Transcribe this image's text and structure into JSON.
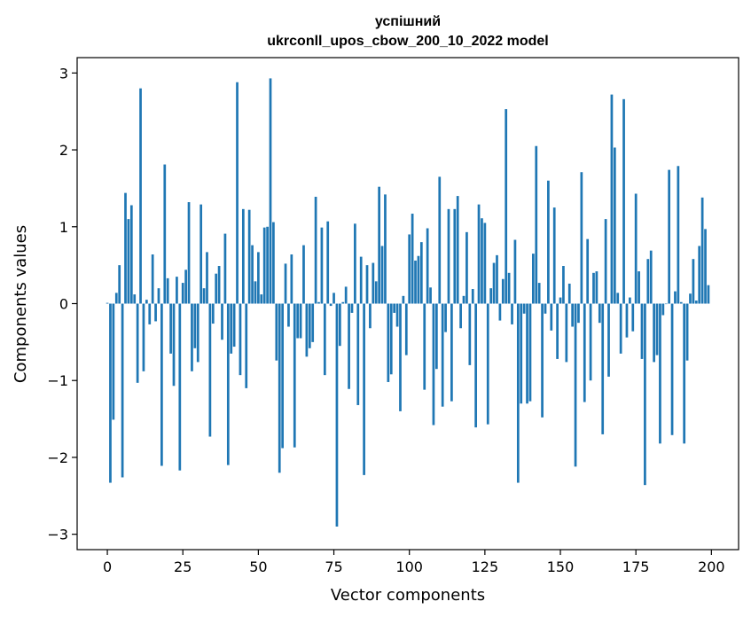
{
  "chart_data": {
    "type": "bar",
    "title": "успішний",
    "subtitle": "ukrconll_upos_cbow_200_10_2022 model",
    "xlabel": "Vector components",
    "ylabel": "Components values",
    "xlim": [
      -10,
      209
    ],
    "ylim": [
      -3.2,
      3.2
    ],
    "xticks": [
      0,
      25,
      50,
      75,
      100,
      125,
      150,
      175,
      200
    ],
    "xtick_labels": [
      "0",
      "25",
      "50",
      "75",
      "100",
      "125",
      "150",
      "175",
      "200"
    ],
    "yticks": [
      -3,
      -2,
      -1,
      0,
      1,
      2,
      3
    ],
    "ytick_labels": [
      "−3",
      "−2",
      "−1",
      "0",
      "1",
      "2",
      "3"
    ],
    "bar_color": "#1f77b4",
    "grid": false,
    "x": [
      0,
      1,
      2,
      3,
      4,
      5,
      6,
      7,
      8,
      9,
      10,
      11,
      12,
      13,
      14,
      15,
      16,
      17,
      18,
      19,
      20,
      21,
      22,
      23,
      24,
      25,
      26,
      27,
      28,
      29,
      30,
      31,
      32,
      33,
      34,
      35,
      36,
      37,
      38,
      39,
      40,
      41,
      42,
      43,
      44,
      45,
      46,
      47,
      48,
      49,
      50,
      51,
      52,
      53,
      54,
      55,
      56,
      57,
      58,
      59,
      60,
      61,
      62,
      63,
      64,
      65,
      66,
      67,
      68,
      69,
      70,
      71,
      72,
      73,
      74,
      75,
      76,
      77,
      78,
      79,
      80,
      81,
      82,
      83,
      84,
      85,
      86,
      87,
      88,
      89,
      90,
      91,
      92,
      93,
      94,
      95,
      96,
      97,
      98,
      99,
      100,
      101,
      102,
      103,
      104,
      105,
      106,
      107,
      108,
      109,
      110,
      111,
      112,
      113,
      114,
      115,
      116,
      117,
      118,
      119,
      120,
      121,
      122,
      123,
      124,
      125,
      126,
      127,
      128,
      129,
      130,
      131,
      132,
      133,
      134,
      135,
      136,
      137,
      138,
      139,
      140,
      141,
      142,
      143,
      144,
      145,
      146,
      147,
      148,
      149,
      150,
      151,
      152,
      153,
      154,
      155,
      156,
      157,
      158,
      159,
      160,
      161,
      162,
      163,
      164,
      165,
      166,
      167,
      168,
      169,
      170,
      171,
      172,
      173,
      174,
      175,
      176,
      177,
      178,
      179,
      180,
      181,
      182,
      183,
      184,
      185,
      186,
      187,
      188,
      189,
      190,
      191,
      192,
      193,
      194,
      195,
      196,
      197,
      198,
      199
    ],
    "values": [
      0.01,
      -2.33,
      -1.51,
      0.14,
      0.5,
      -2.26,
      1.44,
      1.1,
      1.28,
      0.12,
      -1.03,
      2.8,
      -0.88,
      0.05,
      -0.27,
      0.64,
      -0.23,
      0.2,
      -2.11,
      1.81,
      0.33,
      -0.65,
      -1.07,
      0.35,
      -2.17,
      0.27,
      0.44,
      1.32,
      -0.88,
      -0.58,
      -0.76,
      1.29,
      0.2,
      0.67,
      -1.73,
      -0.26,
      0.39,
      0.49,
      -0.47,
      0.91,
      -2.1,
      -0.65,
      -0.56,
      2.88,
      -0.93,
      1.23,
      -1.1,
      1.22,
      0.76,
      0.29,
      0.67,
      0.12,
      0.99,
      1.0,
      2.93,
      1.06,
      -0.74,
      -2.2,
      -1.88,
      0.52,
      -0.3,
      0.64,
      -1.87,
      -0.45,
      -0.45,
      0.76,
      -0.69,
      -0.58,
      -0.5,
      1.39,
      0.02,
      0.99,
      -0.93,
      1.07,
      -0.03,
      0.14,
      -2.9,
      -0.55,
      0.02,
      0.22,
      -1.11,
      -0.12,
      1.04,
      -1.32,
      0.61,
      -2.23,
      0.5,
      -0.32,
      0.53,
      0.29,
      1.52,
      0.75,
      1.42,
      -1.02,
      -0.92,
      -0.12,
      -0.3,
      -1.4,
      0.1,
      -0.67,
      0.9,
      1.17,
      0.56,
      0.62,
      0.8,
      -1.12,
      0.98,
      0.21,
      -1.58,
      -0.85,
      1.65,
      -1.34,
      -0.37,
      1.23,
      -1.27,
      1.23,
      1.4,
      -0.32,
      0.1,
      0.93,
      -0.8,
      0.19,
      -1.61,
      1.29,
      1.11,
      1.05,
      -1.57,
      0.2,
      0.53,
      0.63,
      -0.22,
      0.32,
      2.53,
      0.4,
      -0.27,
      0.83,
      -2.33,
      -1.3,
      -0.13,
      -1.3,
      -1.27,
      0.65,
      2.05,
      0.27,
      -1.48,
      -0.13,
      1.6,
      -0.35,
      1.25,
      -0.72,
      0.08,
      0.49,
      -0.76,
      0.26,
      -0.3,
      -2.12,
      -0.25,
      1.71,
      -1.28,
      0.84,
      -1.0,
      0.4,
      0.42,
      -0.25,
      -1.7,
      1.1,
      -0.95,
      2.72,
      2.03,
      0.14,
      -0.65,
      2.66,
      -0.44,
      0.08,
      -0.36,
      1.43,
      0.42,
      -0.72,
      -2.36,
      0.58,
      0.69,
      -0.76,
      -0.67,
      -1.82,
      -0.15,
      0.0,
      1.74,
      -1.71,
      0.16,
      1.79,
      0.02,
      -1.82,
      -0.74,
      0.13,
      0.58,
      0.04,
      0.75,
      1.38,
      0.97,
      0.24
    ]
  }
}
